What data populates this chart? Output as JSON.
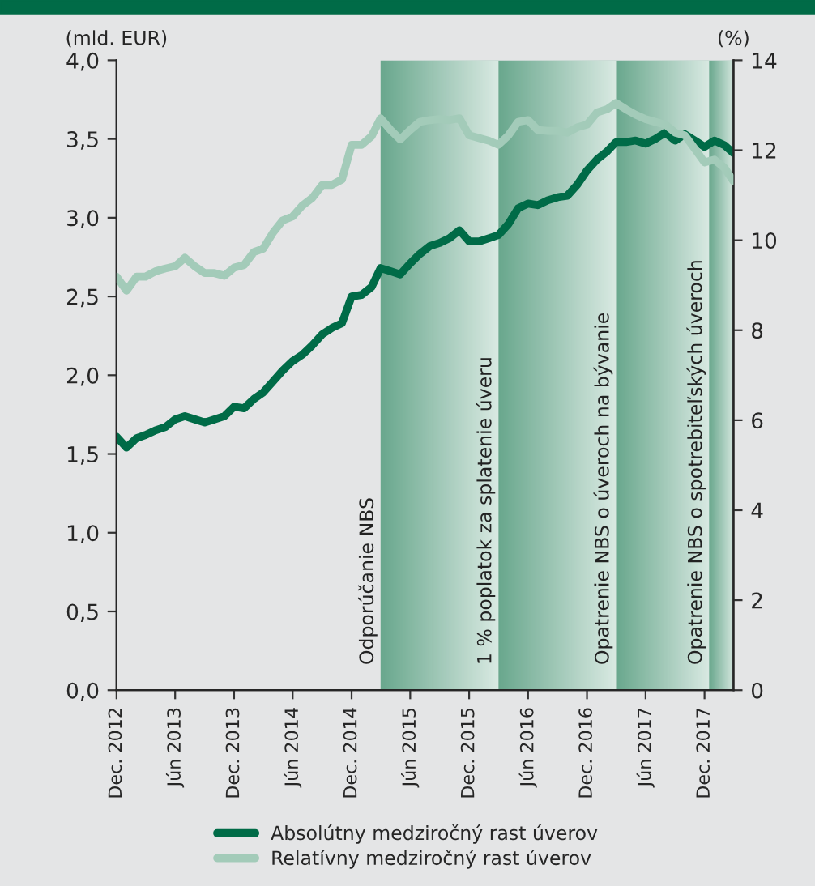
{
  "chart_data": {
    "type": "line",
    "ylabel": "(mld. EUR)",
    "y2label": "(%)",
    "x": [
      "2012-12",
      "2013-01",
      "2013-02",
      "2013-03",
      "2013-04",
      "2013-05",
      "2013-06",
      "2013-07",
      "2013-08",
      "2013-09",
      "2013-10",
      "2013-11",
      "2013-12",
      "2014-01",
      "2014-02",
      "2014-03",
      "2014-04",
      "2014-05",
      "2014-06",
      "2014-07",
      "2014-08",
      "2014-09",
      "2014-10",
      "2014-11",
      "2014-12",
      "2015-01",
      "2015-02",
      "2015-03",
      "2015-04",
      "2015-05",
      "2015-06",
      "2015-07",
      "2015-08",
      "2015-09",
      "2015-10",
      "2015-11",
      "2015-12",
      "2016-01",
      "2016-02",
      "2016-03",
      "2016-04",
      "2016-05",
      "2016-06",
      "2016-07",
      "2016-08",
      "2016-09",
      "2016-10",
      "2016-11",
      "2016-12",
      "2017-01",
      "2017-02",
      "2017-03",
      "2017-04",
      "2017-05",
      "2017-06",
      "2017-07",
      "2017-08",
      "2017-09",
      "2017-10",
      "2017-11",
      "2017-12",
      "2018-01",
      "2018-02",
      "2018-03"
    ],
    "series": [
      {
        "name": "Absolútny medziročný rast úverov",
        "color": "#006b47",
        "values": [
          1.61,
          1.54,
          1.6,
          1.62,
          1.65,
          1.67,
          1.72,
          1.74,
          1.72,
          1.7,
          1.72,
          1.74,
          1.8,
          1.79,
          1.85,
          1.89,
          1.96,
          2.03,
          2.09,
          2.13,
          2.19,
          2.26,
          2.3,
          2.33,
          2.5,
          2.51,
          2.56,
          2.68,
          2.66,
          2.64,
          2.71,
          2.77,
          2.82,
          2.84,
          2.87,
          2.92,
          2.85,
          2.85,
          2.87,
          2.89,
          2.96,
          3.06,
          3.09,
          3.08,
          3.11,
          3.13,
          3.14,
          3.21,
          3.3,
          3.37,
          3.42,
          3.48,
          3.48,
          3.49,
          3.47,
          3.5,
          3.54,
          3.49,
          3.53,
          3.49,
          3.45,
          3.49,
          3.46,
          3.41
        ]
      },
      {
        "name": "Relatívny medziročný rast úverov",
        "color": "#a3cbb9",
        "axis": "y2",
        "values": [
          9.19,
          8.88,
          9.19,
          9.19,
          9.31,
          9.37,
          9.42,
          9.61,
          9.42,
          9.27,
          9.27,
          9.21,
          9.39,
          9.45,
          9.74,
          9.81,
          10.17,
          10.44,
          10.53,
          10.77,
          10.94,
          11.23,
          11.23,
          11.35,
          12.12,
          12.12,
          12.31,
          12.71,
          12.45,
          12.24,
          12.45,
          12.63,
          12.67,
          12.69,
          12.67,
          12.71,
          12.33,
          12.27,
          12.21,
          12.12,
          12.33,
          12.63,
          12.67,
          12.45,
          12.43,
          12.43,
          12.39,
          12.51,
          12.57,
          12.84,
          12.91,
          13.05,
          12.91,
          12.79,
          12.69,
          12.63,
          12.57,
          12.39,
          12.33,
          12.03,
          11.73,
          11.79,
          11.61,
          11.31
        ]
      }
    ],
    "xlim": [
      "2012-12",
      "2018-03"
    ],
    "xticks": [
      {
        "value": "2012-12",
        "label": "Dec. 2012"
      },
      {
        "value": "2013-06",
        "label": "Jún 2013"
      },
      {
        "value": "2013-12",
        "label": "Dec. 2013"
      },
      {
        "value": "2014-06",
        "label": "Jún 2014"
      },
      {
        "value": "2014-12",
        "label": "Dec. 2014"
      },
      {
        "value": "2015-06",
        "label": "Jún 2015"
      },
      {
        "value": "2015-12",
        "label": "Dec. 2015"
      },
      {
        "value": "2016-06",
        "label": "Jún 2016"
      },
      {
        "value": "2016-12",
        "label": "Dec. 2016"
      },
      {
        "value": "2017-06",
        "label": "Jún 2017"
      },
      {
        "value": "2017-12",
        "label": "Dec. 2017"
      }
    ],
    "ylim": [
      0,
      4
    ],
    "yticks": [
      {
        "value": 0,
        "label": "0,0"
      },
      {
        "value": 0.5,
        "label": "0,5"
      },
      {
        "value": 1,
        "label": "1,0"
      },
      {
        "value": 1.5,
        "label": "1,5"
      },
      {
        "value": 2,
        "label": "2,0"
      },
      {
        "value": 2.5,
        "label": "2,5"
      },
      {
        "value": 3,
        "label": "3,0"
      },
      {
        "value": 3.5,
        "label": "3,5"
      },
      {
        "value": 4,
        "label": "4,0"
      }
    ],
    "y2lim": [
      0,
      14
    ],
    "y2ticks": [
      0,
      2,
      4,
      6,
      8,
      10,
      12,
      14
    ],
    "bands": [
      {
        "axis": "x",
        "from": "2015-03",
        "to": "2016-03",
        "label": "Odporúčanie NBS",
        "color": "#6aa88e"
      },
      {
        "axis": "x",
        "from": "2016-03",
        "to": "2017-03",
        "label": "1 % poplatok za splatenie úveru",
        "color": "#6aa88e"
      },
      {
        "axis": "x",
        "from": "2017-03",
        "to": "2017-12-15",
        "label": "Opatrenie NBS o úveroch na bývanie",
        "color": "#6aa88e"
      },
      {
        "axis": "x",
        "from": "2017-12-15",
        "to": "2018-03",
        "label": "Opatrenie NBS o spotrebiteľských úveroch",
        "color": "#6aa88e"
      }
    ],
    "grid": false,
    "legend": "bottom",
    "marker": "none",
    "line_style": "solid"
  }
}
